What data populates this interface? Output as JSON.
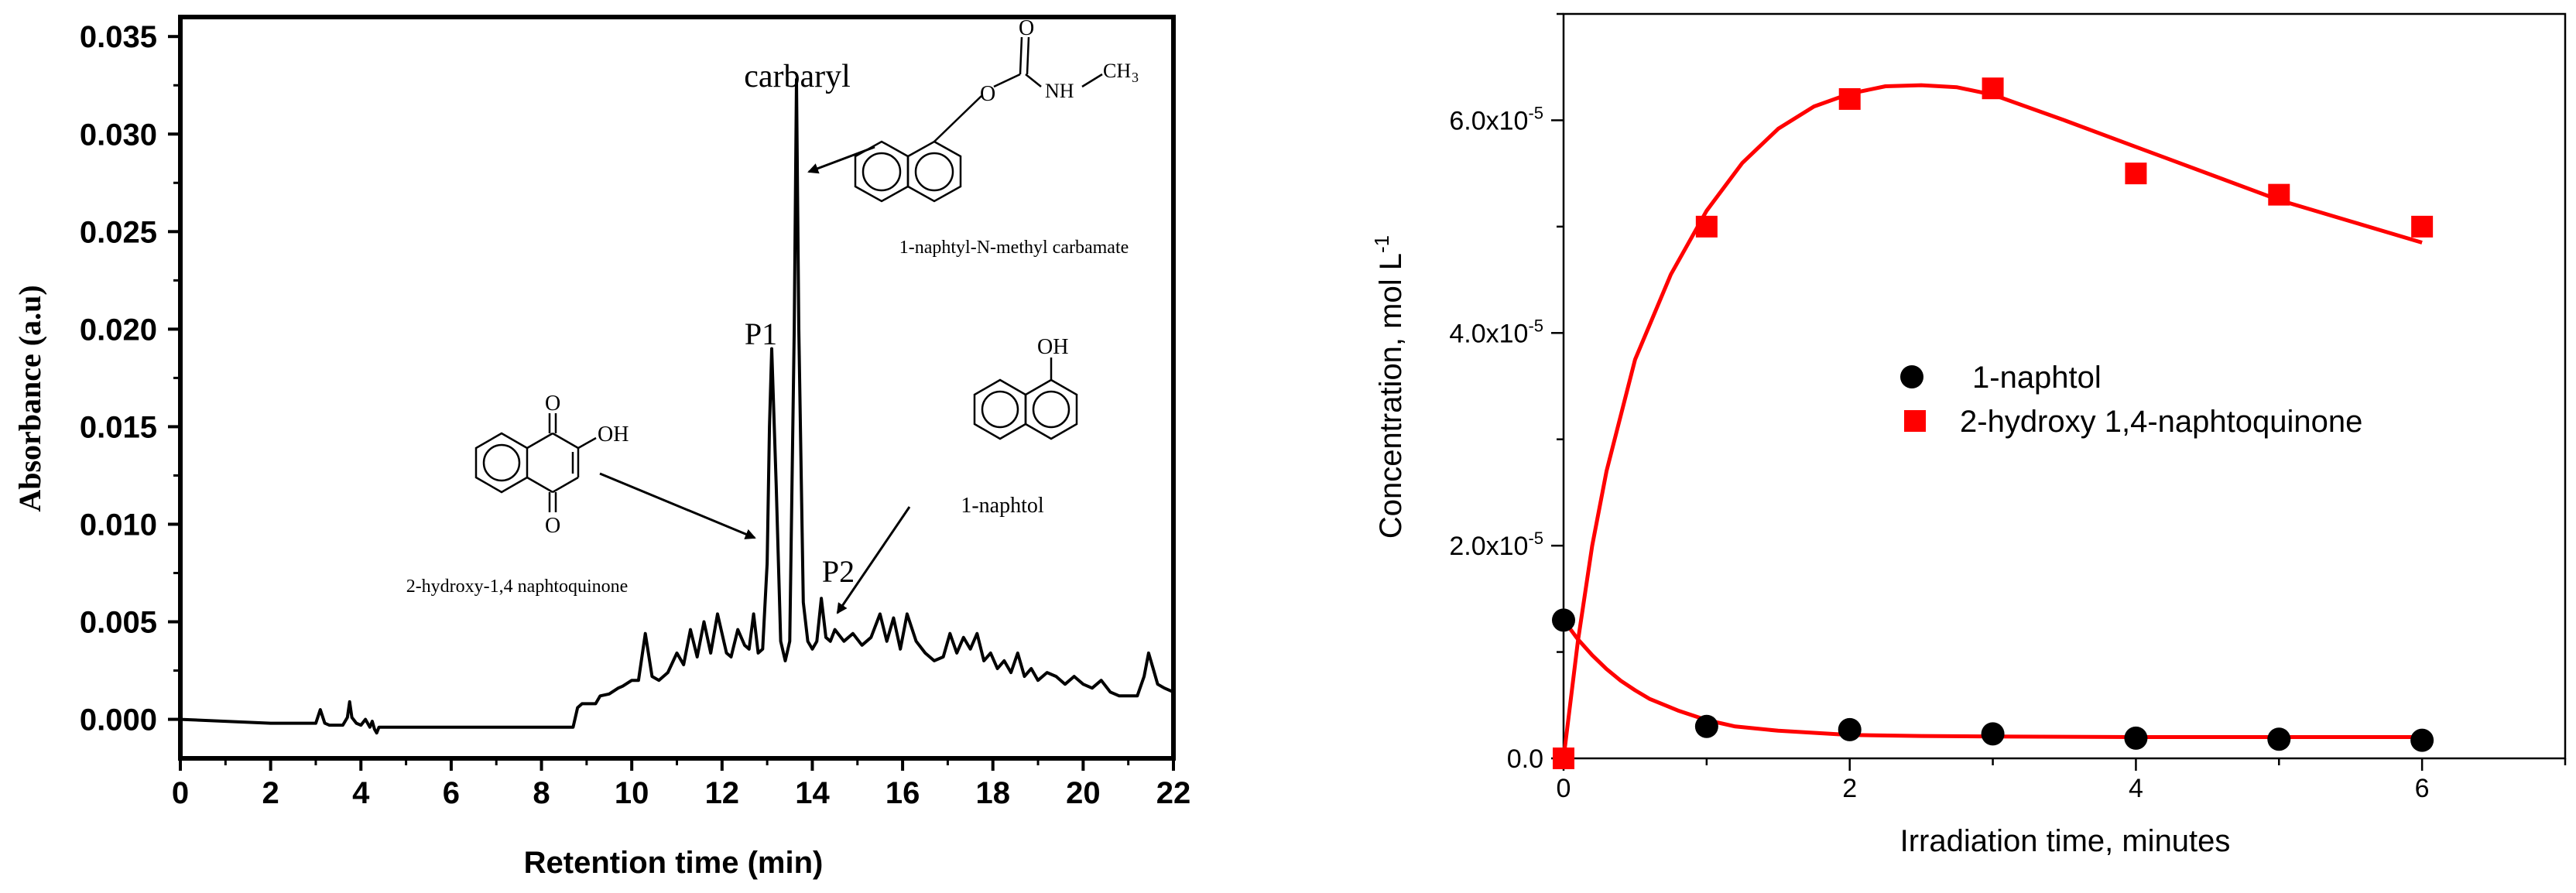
{
  "chart_data": [
    {
      "type": "line",
      "xlabel": "Retention time (min)",
      "ylabel": "Absorbance (a.u)",
      "xlim": [
        0,
        22
      ],
      "ylim": [
        -0.002,
        0.036
      ],
      "xticks": [
        "0",
        "2",
        "4",
        "6",
        "8",
        "10",
        "12",
        "14",
        "16",
        "18",
        "20",
        "22"
      ],
      "yticks": [
        "0.000",
        "0.005",
        "0.010",
        "0.015",
        "0.020",
        "0.025",
        "0.030",
        "0.035"
      ],
      "series": [
        {
          "x": [
            0,
            1,
            2,
            2.9,
            3.0,
            3.1,
            3.2,
            3.3,
            3.6,
            3.7,
            3.75,
            3.8,
            3.9,
            4.0,
            4.1,
            4.2,
            4.25,
            4.3,
            4.35,
            4.4,
            4.45,
            4.5,
            5,
            6,
            7,
            8,
            8.7,
            8.8,
            8.9,
            9.2,
            9.3,
            9.5,
            9.7,
            9.8,
            10.0,
            10.15,
            10.3,
            10.45,
            10.6,
            10.8,
            11.0,
            11.15,
            11.3,
            11.45,
            11.6,
            11.75,
            11.9,
            12.1,
            12.2,
            12.35,
            12.5,
            12.6,
            12.7,
            12.8,
            12.9,
            13.0,
            13.05,
            13.1,
            13.2,
            13.3,
            13.4,
            13.5,
            13.6,
            13.65,
            13.7,
            13.8,
            13.9,
            14.0,
            14.1,
            14.2,
            14.3,
            14.4,
            14.5,
            14.7,
            14.9,
            15.1,
            15.3,
            15.5,
            15.65,
            15.8,
            15.95,
            16.1,
            16.3,
            16.5,
            16.7,
            16.9,
            17.05,
            17.2,
            17.35,
            17.5,
            17.65,
            17.8,
            17.95,
            18.1,
            18.25,
            18.4,
            18.55,
            18.7,
            18.85,
            19.0,
            19.2,
            19.4,
            19.6,
            19.8,
            20.0,
            20.2,
            20.4,
            20.6,
            20.8,
            21.0,
            21.2,
            21.35,
            21.45,
            21.55,
            21.65,
            21.8,
            22.0
          ],
          "values": [
            0.0,
            -0.0001,
            -0.0002,
            -0.0002,
            -0.0002,
            0.0005,
            -0.0002,
            -0.0003,
            -0.0003,
            0.0001,
            0.0009,
            0.0001,
            -0.0002,
            -0.0003,
            0.0,
            -0.0004,
            -0.0001,
            -0.0005,
            -0.0007,
            -0.0004,
            -0.0004,
            -0.0004,
            -0.0004,
            -0.0004,
            -0.0004,
            -0.0004,
            -0.0004,
            0.0006,
            0.0008,
            0.0008,
            0.0012,
            0.0013,
            0.0016,
            0.0017,
            0.002,
            0.002,
            0.0044,
            0.0022,
            0.002,
            0.0024,
            0.0034,
            0.0028,
            0.0046,
            0.0032,
            0.005,
            0.0034,
            0.0054,
            0.0034,
            0.0032,
            0.0046,
            0.0038,
            0.0036,
            0.0054,
            0.0034,
            0.0036,
            0.008,
            0.015,
            0.019,
            0.012,
            0.004,
            0.003,
            0.004,
            0.02,
            0.0328,
            0.02,
            0.006,
            0.004,
            0.0036,
            0.004,
            0.0062,
            0.0042,
            0.004,
            0.0046,
            0.004,
            0.0044,
            0.0038,
            0.0042,
            0.0054,
            0.004,
            0.0052,
            0.0036,
            0.0054,
            0.004,
            0.0034,
            0.003,
            0.0032,
            0.0044,
            0.0034,
            0.0042,
            0.0036,
            0.0044,
            0.003,
            0.0034,
            0.0026,
            0.003,
            0.0024,
            0.0034,
            0.0022,
            0.0026,
            0.002,
            0.0024,
            0.0022,
            0.0018,
            0.0022,
            0.0018,
            0.0016,
            0.002,
            0.0014,
            0.0012,
            0.0012,
            0.0012,
            0.0022,
            0.0034,
            0.0026,
            0.0018,
            0.0016,
            0.0014
          ]
        }
      ],
      "annotations": [
        "carbaryl",
        "P1",
        "P2",
        "1-naphtyl-N-methyl carbamate",
        "2-hydroxy-1,4 naphtoquinone",
        "1-naphtol"
      ],
      "structure_labels": [
        "O",
        "NH",
        "CH",
        "3",
        "OH"
      ],
      "grid": false,
      "color": "#000000"
    },
    {
      "type": "scatter",
      "xlabel": "Irradiation time, minutes",
      "ylabel": "Concentration, mol L-1",
      "xlim": [
        0,
        7
      ],
      "ylim": [
        0,
        7e-05
      ],
      "xticks": [
        "0",
        "2",
        "4",
        "6"
      ],
      "yticks": [
        "0.0",
        "2.0x10-5",
        "4.0x10-5",
        "6.0x10-5"
      ],
      "series": [
        {
          "name": "1-naphtol",
          "marker": "circle",
          "color": "#000000",
          "x": [
            0,
            1,
            2,
            3,
            4,
            5,
            6
          ],
          "values": [
            1.3e-05,
            3e-06,
            2.7e-06,
            2.3e-06,
            1.9e-06,
            1.8e-06,
            1.7e-06
          ],
          "fit_x": [
            0,
            0.1,
            0.2,
            0.3,
            0.4,
            0.5,
            0.6,
            0.8,
            1.0,
            1.2,
            1.5,
            2.0,
            2.5,
            3.0,
            4.0,
            5.0,
            6.0
          ],
          "fit_values": [
            1.3e-05,
            1.12e-05,
            9.7e-06,
            8.4e-06,
            7.3e-06,
            6.4e-06,
            5.6e-06,
            4.5e-06,
            3.6e-06,
            3e-06,
            2.6e-06,
            2.2e-06,
            2.1e-06,
            2.05e-06,
            2e-06,
            2e-06,
            2e-06
          ]
        },
        {
          "name": "2-hydroxy 1,4-naphtoquinone",
          "marker": "square",
          "color": "#ff0000",
          "x": [
            0,
            1,
            2,
            3,
            4,
            5,
            6
          ],
          "values": [
            0,
            5e-05,
            6.2e-05,
            6.3e-05,
            5.5e-05,
            5.3e-05,
            5e-05
          ],
          "fit_x": [
            0,
            0.1,
            0.2,
            0.3,
            0.5,
            0.75,
            1.0,
            1.25,
            1.5,
            1.75,
            2.0,
            2.25,
            2.5,
            2.75,
            3.0,
            3.5,
            4.0,
            4.5,
            5.0,
            5.5,
            6.0
          ],
          "fit_values": [
            0,
            1.1e-05,
            2e-05,
            2.7e-05,
            3.75e-05,
            4.55e-05,
            5.15e-05,
            5.6e-05,
            5.92e-05,
            6.13e-05,
            6.25e-05,
            6.32e-05,
            6.33e-05,
            6.31e-05,
            6.24e-05,
            6e-05,
            5.75e-05,
            5.5e-05,
            5.25e-05,
            5.05e-05,
            4.85e-05
          ]
        }
      ],
      "legend": "center-right",
      "grid": false
    }
  ]
}
